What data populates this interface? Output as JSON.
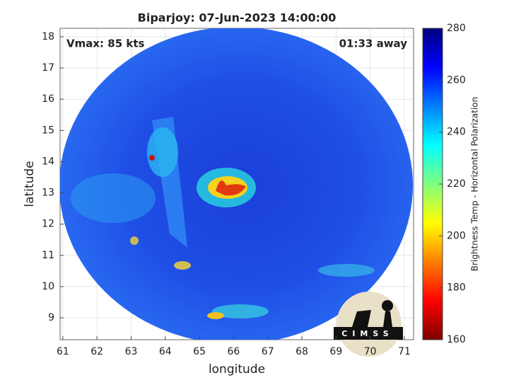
{
  "chart_data": {
    "type": "image",
    "title": "Biparjoy: 07-Jun-2023 14:00:00",
    "annotations": [
      "Vmax: 85 kts",
      "01:33 away"
    ],
    "xlabel": "longitude",
    "ylabel": "latitude",
    "xlim": [
      60.92,
      71.27
    ],
    "xticks": [
      61,
      62,
      63,
      64,
      65,
      66,
      67,
      68,
      69,
      70,
      71
    ],
    "ylim": [
      8.3,
      18.27
    ],
    "yticks": [
      9,
      10,
      11,
      12,
      13,
      14,
      15,
      16,
      17,
      18
    ],
    "grid": true,
    "colormap": "jet",
    "colorbar": {
      "label": "Brightness Temp - Horizontal Polarization",
      "lim": [
        160,
        280
      ],
      "ticks": [
        160,
        180,
        200,
        220,
        240,
        260,
        280
      ]
    },
    "logo_text": "CIMSS"
  }
}
